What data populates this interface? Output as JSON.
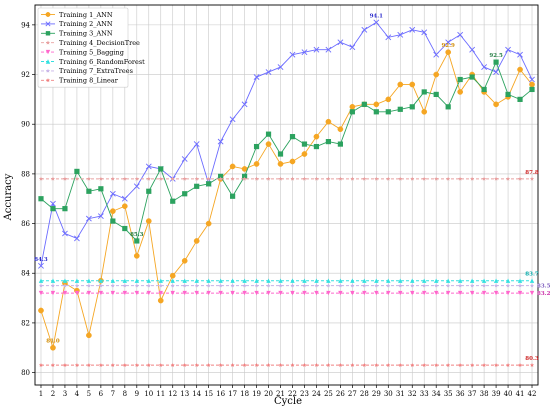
{
  "chart_data": {
    "type": "line",
    "xlabel": "Cycle",
    "ylabel": "Accuracy",
    "x": [
      1,
      2,
      3,
      4,
      5,
      6,
      7,
      8,
      9,
      10,
      11,
      12,
      13,
      14,
      15,
      16,
      17,
      18,
      19,
      20,
      21,
      22,
      23,
      24,
      25,
      26,
      27,
      28,
      29,
      30,
      31,
      32,
      33,
      34,
      35,
      36,
      37,
      38,
      39,
      40,
      41,
      42
    ],
    "xlim": [
      0.5,
      42.5
    ],
    "ylim": [
      79.5,
      94.8
    ],
    "yticks": [
      80,
      82,
      84,
      86,
      88,
      90,
      92,
      94
    ],
    "grid": true,
    "legend_position": "top-left",
    "series": [
      {
        "name": "Training 1_ANN",
        "color": "#f5a623",
        "marker": "circle",
        "values": [
          82.5,
          81.0,
          83.6,
          83.3,
          81.5,
          83.7,
          86.5,
          86.7,
          84.7,
          86.1,
          82.9,
          83.9,
          84.5,
          85.3,
          86.0,
          87.8,
          88.3,
          88.2,
          88.4,
          89.2,
          88.4,
          88.5,
          88.8,
          89.5,
          90.1,
          89.8,
          90.7,
          90.8,
          90.8,
          91.0,
          91.6,
          91.6,
          90.5,
          92.0,
          92.9,
          91.3,
          92.0,
          91.3,
          90.8,
          91.1,
          92.2,
          91.6
        ]
      },
      {
        "name": "Training 2_ANN",
        "color": "#6b6bff",
        "marker": "x",
        "values": [
          84.3,
          86.8,
          85.6,
          85.4,
          86.2,
          86.3,
          87.2,
          87.0,
          87.5,
          88.3,
          88.2,
          87.8,
          88.6,
          89.2,
          87.6,
          89.3,
          90.2,
          90.8,
          91.9,
          92.1,
          92.3,
          92.8,
          92.9,
          93.0,
          93.0,
          93.3,
          93.1,
          93.8,
          94.1,
          93.5,
          93.6,
          93.8,
          93.7,
          92.8,
          93.3,
          93.6,
          93.0,
          92.3,
          92.1,
          93.0,
          92.8,
          91.8
        ]
      },
      {
        "name": "Training 3_ANN",
        "color": "#2ca25f",
        "marker": "square",
        "values": [
          87.0,
          86.6,
          86.6,
          88.1,
          87.3,
          87.4,
          86.1,
          85.8,
          85.3,
          87.3,
          88.2,
          86.9,
          87.2,
          87.5,
          87.6,
          87.9,
          87.1,
          87.9,
          89.1,
          89.6,
          88.8,
          89.5,
          89.2,
          89.1,
          89.3,
          89.2,
          90.5,
          90.8,
          90.5,
          90.5,
          90.6,
          90.7,
          91.3,
          91.2,
          90.7,
          91.8,
          91.9,
          91.4,
          92.5,
          91.2,
          91.0,
          91.4
        ]
      },
      {
        "name": "Training 4_DecisionTree",
        "color": "#e8a0a0",
        "marker": "star",
        "constant": 87.8
      },
      {
        "name": "Training 5_Bagging",
        "color": "#ff66cc",
        "marker": "triangle-down",
        "constant": 83.2
      },
      {
        "name": "Training 6_RandomForest",
        "color": "#33e0e0",
        "marker": "triangle-up",
        "constant": 83.7
      },
      {
        "name": "Training 7_ExtraTrees",
        "color": "#c8b4e8",
        "marker": "star",
        "constant": 83.5
      },
      {
        "name": "Training 8_Linear",
        "color": "#f08080",
        "marker": "star",
        "constant": 80.3
      }
    ],
    "annotations": [
      {
        "text": "84.3",
        "x": 1,
        "y": 84.3,
        "color": "#2b2bcc",
        "side": "above"
      },
      {
        "text": "81.0",
        "x": 2,
        "y": 81.0,
        "color": "#d08a00",
        "side": "above"
      },
      {
        "text": "85.3",
        "x": 9,
        "y": 85.3,
        "color": "#1f7a3f",
        "side": "above"
      },
      {
        "text": "94.1",
        "x": 29,
        "y": 94.1,
        "color": "#2b2bcc",
        "side": "above"
      },
      {
        "text": "92.9",
        "x": 35,
        "y": 92.9,
        "color": "#d08a00",
        "side": "above"
      },
      {
        "text": "92.5",
        "x": 39,
        "y": 92.5,
        "color": "#1f7a3f",
        "side": "above"
      },
      {
        "text": "87.8",
        "x": 42,
        "y": 87.8,
        "color": "#cc2222",
        "side": "above"
      },
      {
        "text": "83.7",
        "x": 42,
        "y": 83.7,
        "color": "#00aaaa",
        "side": "above"
      },
      {
        "text": "83.5",
        "x": 42,
        "y": 83.5,
        "color": "#8060c0",
        "side": "right"
      },
      {
        "text": "83.2",
        "x": 42,
        "y": 83.2,
        "color": "#cc33aa",
        "side": "right"
      },
      {
        "text": "80.3",
        "x": 42,
        "y": 80.3,
        "color": "#cc2222",
        "side": "above"
      }
    ]
  }
}
